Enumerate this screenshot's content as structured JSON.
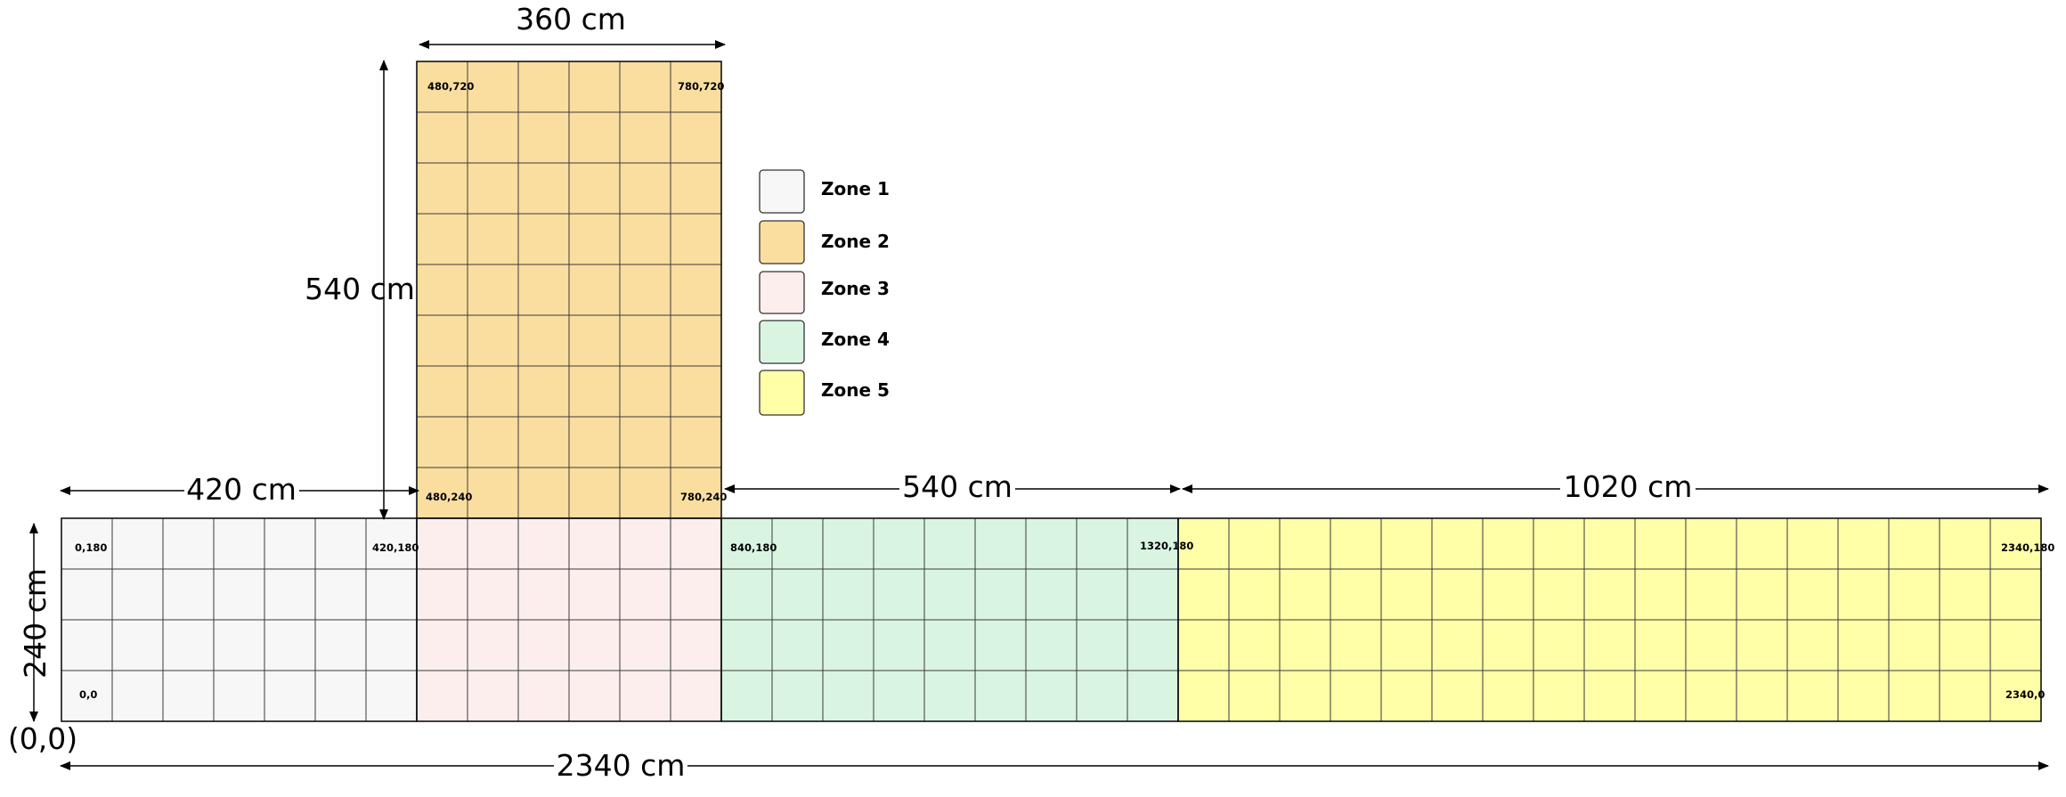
{
  "zones": [
    {
      "id": "zone1",
      "label": "Zone 1",
      "color": "#f7f7f7",
      "rect_cm": {
        "x0": 0,
        "y0": 0,
        "x1": 420,
        "y1": 240
      }
    },
    {
      "id": "zone2",
      "label": "Zone 2",
      "color": "#f9dea0",
      "rect_cm": {
        "x0": 420,
        "y0": 240,
        "x1": 780,
        "y1": 780
      }
    },
    {
      "id": "zone3",
      "label": "Zone 3",
      "color": "#fdeeee",
      "rect_cm": {
        "x0": 420,
        "y0": 0,
        "x1": 780,
        "y1": 240
      }
    },
    {
      "id": "zone4",
      "label": "Zone 4",
      "color": "#d9f5e2",
      "rect_cm": {
        "x0": 780,
        "y0": 0,
        "x1": 1320,
        "y1": 240
      }
    },
    {
      "id": "zone5",
      "label": "Zone 5",
      "color": "#ffffa8",
      "rect_cm": {
        "x0": 1320,
        "y0": 0,
        "x1": 2340,
        "y1": 240
      }
    }
  ],
  "tile_size_cm": 60,
  "dimensions": {
    "zone2_width": "360 cm",
    "zone2_height": "540 cm",
    "zone1_width": "420 cm",
    "zone4_width": "540 cm",
    "zone5_width": "1020 cm",
    "total_height": "240 cm",
    "total_width": "2340 cm"
  },
  "origin_label": "(0,0)",
  "corner_labels": {
    "zone1_bottom_left": "0,0",
    "zone1_top_left": "0,180",
    "zone1_top_right": "420,180",
    "zone2_top_left": "480,720",
    "zone2_top_right": "780,720",
    "zone2_bottom_left": "480,240",
    "zone2_bottom_right": "780,240",
    "zone4_top_left": "840,180",
    "zone4_top_right": "1320,180",
    "zone5_top_right": "2340,180",
    "zone5_bottom_right": "2340,0"
  },
  "legend_items": [
    {
      "label": "Zone 1",
      "color": "#f7f7f7"
    },
    {
      "label": "Zone 2",
      "color": "#f9dea0"
    },
    {
      "label": "Zone 3",
      "color": "#fdeeee"
    },
    {
      "label": "Zone 4",
      "color": "#d9f5e2"
    },
    {
      "label": "Zone 5",
      "color": "#ffffa8"
    }
  ]
}
